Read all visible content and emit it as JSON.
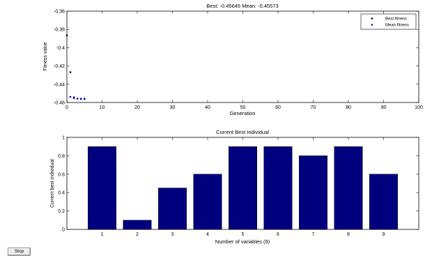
{
  "controls": {
    "stop_label": "Stop"
  },
  "colors": {
    "bar": "#00007f",
    "best_marker": "#000000",
    "mean_marker": "#0000ff",
    "axes": "#000000"
  },
  "chart_data": [
    {
      "type": "scatter",
      "title": "Best: -0.45645 Mean: -0.45573",
      "xlabel": "Generation",
      "ylabel": "Fitness value",
      "xlim": [
        0,
        100
      ],
      "ylim": [
        -0.46,
        -0.36
      ],
      "xticks": [
        "0",
        "10",
        "20",
        "30",
        "40",
        "50",
        "60",
        "70",
        "80",
        "90",
        "100"
      ],
      "yticks": [
        "-0.36",
        "-0.38",
        "-0.4",
        "-0.42",
        "-0.44",
        "-0.46"
      ],
      "grid": false,
      "legend_position": "top-right",
      "series": [
        {
          "name": "Best fitness",
          "x": [
            0,
            1,
            2,
            3,
            4,
            5
          ],
          "y": [
            -0.3865,
            -0.4268,
            -0.4543,
            -0.4557,
            -0.4562,
            -0.4562
          ]
        },
        {
          "name": "Mean fitness",
          "x": [
            1,
            2,
            3,
            4,
            5
          ],
          "y": [
            -0.4538,
            -0.4553,
            -0.4557,
            -0.4558,
            -0.4557
          ]
        }
      ]
    },
    {
      "type": "bar",
      "title": "Current Best Individual",
      "xlabel": "Number of variables (9)",
      "ylabel": "Current best individual",
      "categories": [
        "1",
        "2",
        "3",
        "4",
        "5",
        "6",
        "7",
        "8",
        "9"
      ],
      "values": [
        0.9,
        0.1,
        0.45,
        0.6,
        0.9,
        0.9,
        0.8,
        0.9,
        0.6
      ],
      "ylim": [
        0,
        1
      ],
      "yticks": [
        "0",
        "0.2",
        "0.4",
        "0.6",
        "0.8",
        "1"
      ],
      "grid": false
    }
  ]
}
